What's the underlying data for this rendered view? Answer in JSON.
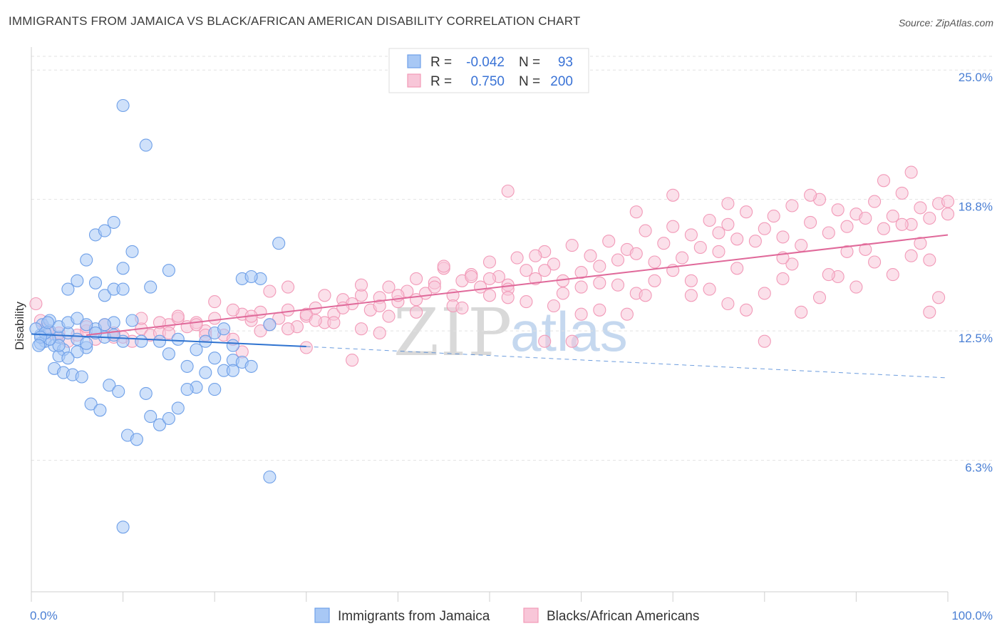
{
  "title": "IMMIGRANTS FROM JAMAICA VS BLACK/AFRICAN AMERICAN DISABILITY CORRELATION CHART",
  "source": "Source: ZipAtlas.com",
  "watermark": {
    "zip": "ZIP",
    "atlas": "atlas"
  },
  "chart_data": {
    "type": "scatter",
    "title": "IMMIGRANTS FROM JAMAICA VS BLACK/AFRICAN AMERICAN DISABILITY CORRELATION CHART",
    "xlabel": "",
    "ylabel": "Disability",
    "xlim": [
      0,
      100
    ],
    "ylim": [
      0,
      26.1
    ],
    "x_tick_labels": {
      "min": "0.0%",
      "max": "100.0%"
    },
    "x_minor_ticks": [
      0,
      10,
      20,
      30,
      40,
      50,
      60,
      70,
      80,
      90,
      100
    ],
    "y_ticks": [
      {
        "value": 25.0,
        "label": "25.0%"
      },
      {
        "value": 18.8,
        "label": "18.8%"
      },
      {
        "value": 12.5,
        "label": "12.5%"
      },
      {
        "value": 6.3,
        "label": "6.3%"
      }
    ],
    "grid": true,
    "legend": {
      "position": "top-center",
      "entries": [
        {
          "r_label": "R =",
          "r_value": "-0.042",
          "n_label": "N =",
          "n_value": "93"
        },
        {
          "r_label": "R =",
          "r_value": "0.750",
          "n_label": "N =",
          "n_value": "200"
        }
      ]
    },
    "series": [
      {
        "name": "Immigrants from Jamaica",
        "color": "#6fa0e8",
        "fill": "#a8c8f5",
        "line_color": "#2f73d0",
        "trend": {
          "x0": 0,
          "y0": 12.35,
          "x1": 30,
          "y1": 11.75,
          "dashed_to_x": 100,
          "dashed_to_y": 10.25
        },
        "points": [
          [
            1,
            12.3
          ],
          [
            1.2,
            12.8
          ],
          [
            1.5,
            12.0
          ],
          [
            2,
            12.5
          ],
          [
            2.5,
            11.8
          ],
          [
            3,
            12.2
          ],
          [
            1,
            11.9
          ],
          [
            0.5,
            12.6
          ],
          [
            3.5,
            11.6
          ],
          [
            4,
            12.4
          ],
          [
            5,
            12.1
          ],
          [
            6,
            11.7
          ],
          [
            7,
            12.6
          ],
          [
            8,
            12.2
          ],
          [
            9,
            12.9
          ],
          [
            10,
            12.0
          ],
          [
            2,
            13.0
          ],
          [
            3,
            12.7
          ],
          [
            4,
            12.9
          ],
          [
            5,
            13.1
          ],
          [
            6,
            12.8
          ],
          [
            7,
            14.8
          ],
          [
            8,
            14.2
          ],
          [
            9,
            14.5
          ],
          [
            10,
            14.5
          ],
          [
            11,
            13.0
          ],
          [
            12,
            12.0
          ],
          [
            13,
            14.6
          ],
          [
            14,
            12.0
          ],
          [
            15,
            11.4
          ],
          [
            16,
            12.1
          ],
          [
            17,
            10.8
          ],
          [
            18,
            9.8
          ],
          [
            19,
            10.5
          ],
          [
            20,
            9.7
          ],
          [
            21,
            10.6
          ],
          [
            22,
            11.1
          ],
          [
            23,
            11.0
          ],
          [
            24,
            10.8
          ],
          [
            25,
            15.0
          ],
          [
            26,
            12.8
          ],
          [
            27,
            16.7
          ],
          [
            7,
            17.1
          ],
          [
            8,
            17.3
          ],
          [
            9,
            17.7
          ],
          [
            10,
            15.5
          ],
          [
            11,
            16.3
          ],
          [
            6,
            15.9
          ],
          [
            4,
            14.5
          ],
          [
            5,
            14.9
          ],
          [
            3,
            11.3
          ],
          [
            2.5,
            10.7
          ],
          [
            3.5,
            10.5
          ],
          [
            4.5,
            10.4
          ],
          [
            5.5,
            10.3
          ],
          [
            6.5,
            9.0
          ],
          [
            7.5,
            8.7
          ],
          [
            8.5,
            9.9
          ],
          [
            9.5,
            9.6
          ],
          [
            10.5,
            7.5
          ],
          [
            11.5,
            7.3
          ],
          [
            12.5,
            9.5
          ],
          [
            13,
            8.4
          ],
          [
            14,
            8.0
          ],
          [
            15,
            8.3
          ],
          [
            16,
            8.8
          ],
          [
            17,
            9.7
          ],
          [
            18,
            11.6
          ],
          [
            19,
            12.0
          ],
          [
            20,
            12.4
          ],
          [
            21,
            12.6
          ],
          [
            22,
            11.8
          ],
          [
            23,
            15.0
          ],
          [
            24,
            15.1
          ],
          [
            10,
            23.3
          ],
          [
            12.5,
            21.4
          ],
          [
            15,
            15.4
          ],
          [
            9,
            12.3
          ],
          [
            8,
            12.8
          ],
          [
            7,
            12.4
          ],
          [
            6,
            11.9
          ],
          [
            5,
            11.5
          ],
          [
            4,
            11.2
          ],
          [
            3,
            11.8
          ],
          [
            2,
            12.1
          ],
          [
            1.5,
            12.4
          ],
          [
            1,
            12.2
          ],
          [
            0.8,
            11.8
          ],
          [
            1.8,
            12.9
          ],
          [
            26,
            5.5
          ],
          [
            10,
            3.1
          ],
          [
            22,
            10.6
          ],
          [
            20,
            11.2
          ]
        ]
      },
      {
        "name": "Blacks/African Americans",
        "color": "#f29ab8",
        "fill": "#f8c6d8",
        "line_color": "#e0699a",
        "trend": {
          "x0": 6,
          "y0": 12.3,
          "x1": 100,
          "y1": 17.1
        },
        "points": [
          [
            0.5,
            13.8
          ],
          [
            1,
            13.0
          ],
          [
            1.5,
            12.6
          ],
          [
            2,
            12.4
          ],
          [
            3,
            12.2
          ],
          [
            4,
            12.0
          ],
          [
            5,
            12.3
          ],
          [
            6,
            12.5
          ],
          [
            7,
            12.1
          ],
          [
            8,
            12.8
          ],
          [
            9,
            12.4
          ],
          [
            10,
            12.2
          ],
          [
            11,
            12.0
          ],
          [
            12,
            12.6
          ],
          [
            13,
            12.3
          ],
          [
            14,
            12.4
          ],
          [
            15,
            12.8
          ],
          [
            16,
            13.1
          ],
          [
            17,
            12.7
          ],
          [
            18,
            12.9
          ],
          [
            19,
            12.5
          ],
          [
            20,
            13.1
          ],
          [
            21,
            12.3
          ],
          [
            22,
            12.1
          ],
          [
            23,
            13.3
          ],
          [
            24,
            13.0
          ],
          [
            25,
            13.4
          ],
          [
            26,
            12.8
          ],
          [
            27,
            13.1
          ],
          [
            28,
            13.5
          ],
          [
            29,
            12.7
          ],
          [
            30,
            13.2
          ],
          [
            31,
            13.6
          ],
          [
            32,
            12.9
          ],
          [
            33,
            13.3
          ],
          [
            34,
            14.0
          ],
          [
            35,
            13.8
          ],
          [
            36,
            14.2
          ],
          [
            37,
            13.5
          ],
          [
            38,
            14.1
          ],
          [
            39,
            14.6
          ],
          [
            40,
            13.9
          ],
          [
            41,
            14.4
          ],
          [
            42,
            15.0
          ],
          [
            43,
            14.3
          ],
          [
            44,
            14.8
          ],
          [
            45,
            15.5
          ],
          [
            46,
            14.2
          ],
          [
            47,
            14.9
          ],
          [
            48,
            15.2
          ],
          [
            49,
            14.6
          ],
          [
            50,
            15.8
          ],
          [
            51,
            15.1
          ],
          [
            52,
            14.7
          ],
          [
            53,
            16.0
          ],
          [
            54,
            15.4
          ],
          [
            55,
            15.0
          ],
          [
            56,
            16.3
          ],
          [
            57,
            15.7
          ],
          [
            58,
            14.9
          ],
          [
            59,
            16.6
          ],
          [
            60,
            15.3
          ],
          [
            61,
            16.1
          ],
          [
            62,
            15.6
          ],
          [
            63,
            16.8
          ],
          [
            64,
            15.9
          ],
          [
            65,
            16.4
          ],
          [
            66,
            16.2
          ],
          [
            67,
            17.3
          ],
          [
            68,
            15.8
          ],
          [
            69,
            16.7
          ],
          [
            70,
            17.5
          ],
          [
            71,
            16.0
          ],
          [
            72,
            17.1
          ],
          [
            73,
            16.5
          ],
          [
            74,
            17.8
          ],
          [
            75,
            16.3
          ],
          [
            76,
            17.6
          ],
          [
            77,
            16.9
          ],
          [
            78,
            18.2
          ],
          [
            79,
            16.8
          ],
          [
            80,
            17.4
          ],
          [
            81,
            18.0
          ],
          [
            82,
            17.0
          ],
          [
            83,
            18.5
          ],
          [
            84,
            16.6
          ],
          [
            85,
            17.7
          ],
          [
            86,
            18.8
          ],
          [
            87,
            17.2
          ],
          [
            88,
            18.3
          ],
          [
            89,
            17.5
          ],
          [
            90,
            18.1
          ],
          [
            91,
            17.9
          ],
          [
            92,
            18.7
          ],
          [
            93,
            17.4
          ],
          [
            94,
            18.0
          ],
          [
            95,
            19.1
          ],
          [
            96,
            17.6
          ],
          [
            97,
            18.4
          ],
          [
            98,
            17.9
          ],
          [
            99,
            18.6
          ],
          [
            100,
            18.1
          ],
          [
            52,
            19.2
          ],
          [
            70,
            19.0
          ],
          [
            76,
            18.6
          ],
          [
            85,
            19.0
          ],
          [
            93,
            19.7
          ],
          [
            96,
            20.1
          ],
          [
            100,
            18.7
          ],
          [
            99,
            14.1
          ],
          [
            98,
            13.4
          ],
          [
            80,
            12.0
          ],
          [
            59,
            12.0
          ],
          [
            56,
            12.0
          ],
          [
            30,
            11.7
          ],
          [
            35,
            11.1
          ],
          [
            23,
            11.5
          ],
          [
            12,
            13.1
          ],
          [
            14,
            12.9
          ],
          [
            16,
            13.2
          ],
          [
            18,
            12.8
          ],
          [
            20,
            13.9
          ],
          [
            22,
            13.5
          ],
          [
            24,
            13.2
          ],
          [
            26,
            14.4
          ],
          [
            28,
            14.6
          ],
          [
            30,
            13.3
          ],
          [
            32,
            14.2
          ],
          [
            34,
            13.6
          ],
          [
            36,
            14.7
          ],
          [
            38,
            13.7
          ],
          [
            40,
            14.2
          ],
          [
            42,
            14.0
          ],
          [
            44,
            14.6
          ],
          [
            46,
            13.7
          ],
          [
            48,
            15.1
          ],
          [
            50,
            14.2
          ],
          [
            52,
            14.5
          ],
          [
            54,
            13.9
          ],
          [
            56,
            15.4
          ],
          [
            58,
            14.3
          ],
          [
            60,
            14.6
          ],
          [
            62,
            13.5
          ],
          [
            64,
            14.7
          ],
          [
            66,
            14.3
          ],
          [
            68,
            14.9
          ],
          [
            70,
            15.4
          ],
          [
            72,
            14.9
          ],
          [
            74,
            14.5
          ],
          [
            76,
            13.8
          ],
          [
            78,
            13.5
          ],
          [
            80,
            14.3
          ],
          [
            82,
            15.0
          ],
          [
            84,
            13.4
          ],
          [
            86,
            14.1
          ],
          [
            88,
            15.1
          ],
          [
            90,
            14.6
          ],
          [
            92,
            15.8
          ],
          [
            94,
            15.2
          ],
          [
            96,
            16.1
          ],
          [
            98,
            15.9
          ],
          [
            60,
            13.3
          ],
          [
            65,
            13.3
          ],
          [
            45,
            15.6
          ],
          [
            50,
            15.0
          ],
          [
            55,
            16.1
          ],
          [
            66,
            18.2
          ],
          [
            75,
            17.2
          ],
          [
            83,
            15.7
          ],
          [
            89,
            16.3
          ],
          [
            95,
            17.6
          ],
          [
            38,
            12.4
          ],
          [
            42,
            13.4
          ],
          [
            47,
            13.6
          ],
          [
            52,
            14.1
          ],
          [
            57,
            13.7
          ],
          [
            62,
            14.8
          ],
          [
            67,
            14.2
          ],
          [
            72,
            14.2
          ],
          [
            77,
            15.5
          ],
          [
            82,
            16.0
          ],
          [
            87,
            15.2
          ],
          [
            91,
            16.4
          ],
          [
            97,
            16.7
          ],
          [
            3,
            12.4
          ],
          [
            6,
            12.7
          ],
          [
            9,
            12.2
          ],
          [
            15,
            12.4
          ],
          [
            19,
            12.3
          ],
          [
            25,
            12.5
          ],
          [
            28,
            12.6
          ],
          [
            31,
            13.0
          ],
          [
            33,
            12.9
          ],
          [
            36,
            12.6
          ],
          [
            39,
            13.2
          ]
        ]
      }
    ]
  }
}
